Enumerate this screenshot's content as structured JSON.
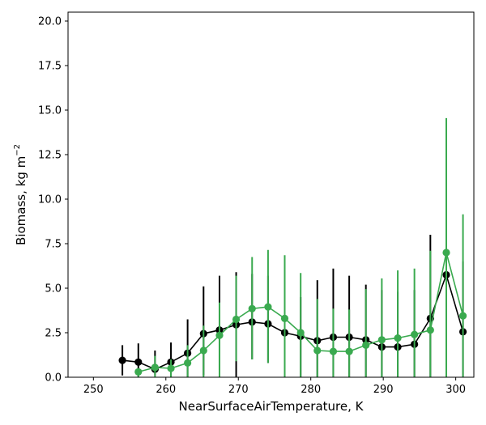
{
  "chart_data": {
    "type": "line",
    "title": "",
    "xlabel": "NearSurfaceAirTemperature,  K",
    "ylabel_main": "Biomass,  kg m",
    "ylabel_sup": "−2",
    "xlim": [
      246.5,
      302.5
    ],
    "ylim": [
      0,
      20.5
    ],
    "xticks": [
      250,
      260,
      270,
      280,
      290,
      300
    ],
    "yticks": [
      0.0,
      2.5,
      5.0,
      7.5,
      10.0,
      12.5,
      15.0,
      17.5,
      20.0
    ],
    "ytick_labels": [
      "0.0",
      "2.5",
      "5.0",
      "7.5",
      "10.0",
      "12.5",
      "15.0",
      "17.5",
      "20.0"
    ],
    "grid": false,
    "series": [
      {
        "color": "#000000",
        "x": [
          254.0,
          256.2,
          258.5,
          260.7,
          263.0,
          265.2,
          267.4,
          269.7,
          271.9,
          274.1,
          276.4,
          278.6,
          280.9,
          283.1,
          285.3,
          287.6,
          289.8,
          292.0,
          294.3,
          296.5,
          298.7,
          301.0
        ],
        "y": [
          0.95,
          0.85,
          0.45,
          0.85,
          1.35,
          2.45,
          2.65,
          2.95,
          3.1,
          3.0,
          2.5,
          2.3,
          2.05,
          2.25,
          2.25,
          2.1,
          1.7,
          1.7,
          1.85,
          3.3,
          5.75,
          2.55
        ],
        "err_low": [
          0.1,
          0.0,
          0.1,
          0.0,
          0.0,
          0.1,
          0.4,
          0.0,
          1.0,
          0.8,
          0.0,
          0.0,
          0.0,
          0.0,
          0.0,
          0.0,
          0.0,
          0.0,
          0.0,
          0.0,
          0.0,
          0.0
        ],
        "err_high": [
          1.8,
          1.9,
          1.5,
          1.95,
          3.25,
          5.1,
          5.7,
          5.9,
          5.8,
          5.7,
          4.6,
          4.5,
          5.45,
          6.1,
          5.7,
          5.2,
          4.9,
          4.8,
          4.9,
          8.0,
          7.0,
          6.5
        ]
      },
      {
        "color": "#3aaa4f",
        "x": [
          256.2,
          258.5,
          260.7,
          263.0,
          265.2,
          267.4,
          269.7,
          271.9,
          274.1,
          276.4,
          278.6,
          280.9,
          283.1,
          285.3,
          287.6,
          289.8,
          292.0,
          294.3,
          296.5,
          298.7,
          301.0
        ],
        "y": [
          0.3,
          0.55,
          0.5,
          0.8,
          1.5,
          2.35,
          3.25,
          3.85,
          3.95,
          3.3,
          2.5,
          1.5,
          1.45,
          1.45,
          1.8,
          2.1,
          2.2,
          2.4,
          2.65,
          7.0,
          3.45
        ],
        "err_low": [
          0.0,
          0.0,
          0.0,
          0.0,
          0.0,
          0.0,
          0.9,
          1.0,
          0.8,
          0.0,
          0.0,
          0.0,
          0.0,
          0.0,
          0.0,
          0.0,
          0.0,
          0.0,
          0.0,
          0.0,
          0.0
        ],
        "err_high": [
          0.5,
          1.2,
          1.0,
          1.8,
          2.9,
          4.2,
          5.7,
          6.75,
          7.15,
          6.85,
          5.85,
          4.4,
          3.85,
          3.8,
          4.95,
          5.55,
          6.0,
          6.1,
          7.1,
          14.55,
          9.15
        ]
      }
    ]
  }
}
